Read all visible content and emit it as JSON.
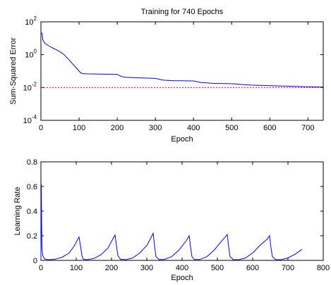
{
  "chart_data": [
    {
      "type": "line",
      "title": "Training for 740 Epochs",
      "xlabel": "Epoch",
      "ylabel": "Sum-Squared Error",
      "xlim": [
        0,
        740
      ],
      "ylim": [
        0.0001,
        100
      ],
      "yscale": "log",
      "xticks": [
        "0",
        "100",
        "200",
        "300",
        "400",
        "500",
        "600",
        "700"
      ],
      "yticks": [
        {
          "base": "10",
          "exp": "2",
          "value": 100
        },
        {
          "base": "10",
          "exp": "0",
          "value": 1
        },
        {
          "base": "10",
          "exp": "-2",
          "value": 0.01
        },
        {
          "base": "10",
          "exp": "-4",
          "value": 0.0001
        }
      ],
      "goal": 0.01,
      "goal_color": "#ff0000",
      "series_color": "#0000ff",
      "series": [
        {
          "x": [
            0,
            3,
            5,
            10,
            20,
            30,
            40,
            50,
            60,
            70,
            80,
            90,
            100,
            105,
            110,
            120,
            150,
            200,
            210,
            220,
            250,
            300,
            320,
            350,
            400,
            420,
            450,
            500,
            530,
            550,
            600,
            650,
            700,
            740
          ],
          "values": [
            20,
            20,
            8,
            5,
            3.5,
            2.6,
            2.0,
            1.5,
            1.05,
            0.6,
            0.33,
            0.18,
            0.1,
            0.075,
            0.07,
            0.068,
            0.066,
            0.062,
            0.048,
            0.042,
            0.039,
            0.036,
            0.028,
            0.026,
            0.025,
            0.02,
            0.018,
            0.017,
            0.015,
            0.014,
            0.013,
            0.012,
            0.011,
            0.0105
          ]
        }
      ]
    },
    {
      "type": "line",
      "title": "",
      "xlabel": "Epoch",
      "ylabel": "Learning Rate",
      "xlim": [
        0,
        800
      ],
      "ylim": [
        0,
        0.8
      ],
      "xticks": [
        "0",
        "100",
        "200",
        "300",
        "400",
        "500",
        "600",
        "700",
        "800"
      ],
      "yticks": [
        "0",
        "0.2",
        "0.4",
        "0.6",
        "0.8"
      ],
      "series_color": "#0000ff",
      "series": [
        {
          "x": [
            0,
            1,
            2,
            3,
            5,
            10,
            20,
            40,
            60,
            80,
            95,
            103,
            108,
            112,
            116,
            120,
            130,
            150,
            170,
            190,
            203,
            210,
            214,
            218,
            225,
            240,
            260,
            280,
            300,
            312,
            318,
            322,
            326,
            335,
            350,
            370,
            390,
            412,
            420,
            424,
            428,
            435,
            450,
            470,
            490,
            510,
            522,
            528,
            532,
            536,
            545,
            560,
            580,
            600,
            620,
            640,
            648,
            652,
            656,
            665,
            680,
            700,
            720,
            740
          ],
          "values": [
            0.01,
            0.62,
            0.3,
            0.1,
            0.04,
            0.012,
            0.005,
            0.01,
            0.025,
            0.06,
            0.12,
            0.165,
            0.19,
            0.12,
            0.04,
            0.01,
            0.005,
            0.015,
            0.045,
            0.1,
            0.17,
            0.205,
            0.12,
            0.04,
            0.01,
            0.005,
            0.02,
            0.06,
            0.12,
            0.185,
            0.22,
            0.12,
            0.03,
            0.006,
            0.008,
            0.03,
            0.08,
            0.16,
            0.2,
            0.11,
            0.03,
            0.006,
            0.007,
            0.03,
            0.08,
            0.15,
            0.19,
            0.21,
            0.11,
            0.03,
            0.006,
            0.005,
            0.02,
            0.06,
            0.12,
            0.17,
            0.2,
            0.1,
            0.03,
            0.006,
            0.005,
            0.02,
            0.05,
            0.09
          ]
        }
      ]
    }
  ]
}
